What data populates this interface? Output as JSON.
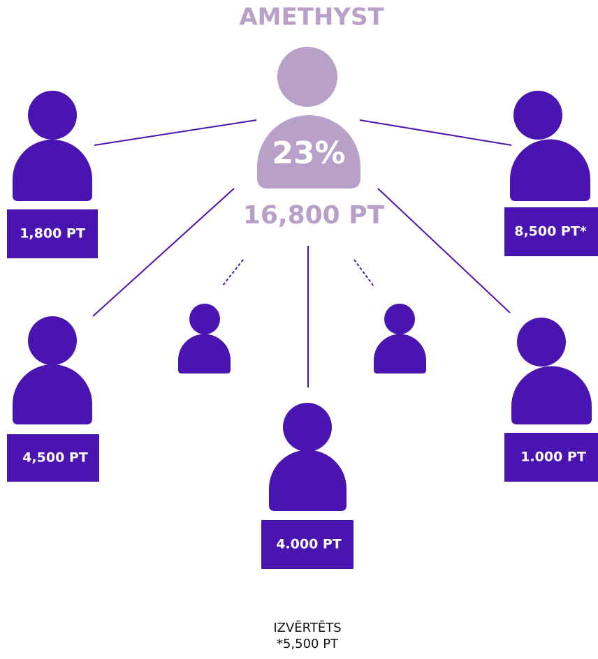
{
  "title": "AMETHYST",
  "center": {
    "percent": "23%",
    "points": "16,800 PT"
  },
  "nodes": [
    {
      "label": "1,800 PT"
    },
    {
      "label": "8,500 PT*"
    },
    {
      "label": "4,500 PT"
    },
    {
      "label": "1.000 PT"
    },
    {
      "label": "4.000 PT"
    }
  ],
  "footer": {
    "line1": "IZVĒRTĒTS",
    "line2": "*5,500 PT"
  }
}
